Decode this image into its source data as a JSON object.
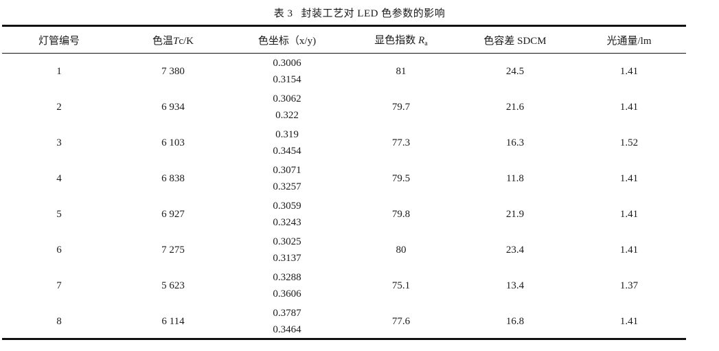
{
  "caption": {
    "number": "表 3",
    "title": "封装工艺对 LED 色参数的影响"
  },
  "headers": {
    "lamp": "灯管编号",
    "cct_prefix": "色温",
    "cct_symbol": "T",
    "cct_suffix": "c/K",
    "coord": "色坐标（x/y)",
    "cri_prefix": "显色指数",
    "cri_symbol": "R",
    "cri_sub": "a",
    "sdcm": "色容差 SDCM",
    "flux": "光通量/lm"
  },
  "rows": [
    {
      "lamp": "1",
      "cct": "7 380",
      "x": "0.3006",
      "y": "0.3154",
      "cri": "81",
      "sdcm": "24.5",
      "flux": "1.41"
    },
    {
      "lamp": "2",
      "cct": "6 934",
      "x": "0.3062",
      "y": "0.322",
      "cri": "79.7",
      "sdcm": "21.6",
      "flux": "1.41"
    },
    {
      "lamp": "3",
      "cct": "6 103",
      "x": "0.319",
      "y": "0.3454",
      "cri": "77.3",
      "sdcm": "16.3",
      "flux": "1.52"
    },
    {
      "lamp": "4",
      "cct": "6 838",
      "x": "0.3071",
      "y": "0.3257",
      "cri": "79.5",
      "sdcm": "11.8",
      "flux": "1.41"
    },
    {
      "lamp": "5",
      "cct": "6 927",
      "x": "0.3059",
      "y": "0.3243",
      "cri": "79.8",
      "sdcm": "21.9",
      "flux": "1.41"
    },
    {
      "lamp": "6",
      "cct": "7 275",
      "x": "0.3025",
      "y": "0.3137",
      "cri": "80",
      "sdcm": "23.4",
      "flux": "1.41"
    },
    {
      "lamp": "7",
      "cct": "5 623",
      "x": "0.3288",
      "y": "0.3606",
      "cri": "75.1",
      "sdcm": "13.4",
      "flux": "1.37"
    },
    {
      "lamp": "8",
      "cct": "6 114",
      "x": "0.3787",
      "y": "0.3464",
      "cri": "77.6",
      "sdcm": "16.8",
      "flux": "1.41"
    }
  ]
}
